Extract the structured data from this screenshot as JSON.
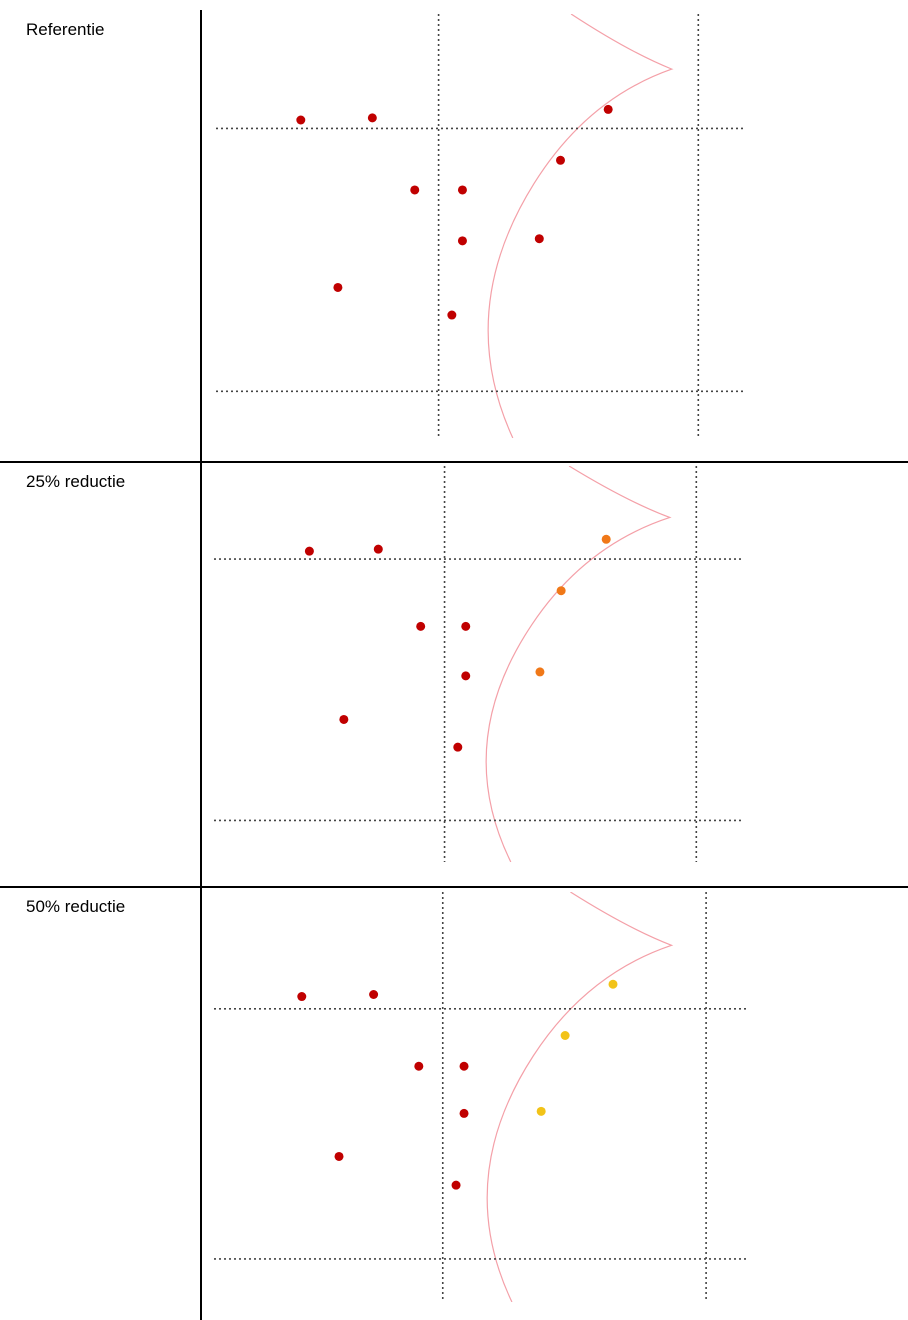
{
  "rows": [
    {
      "label": "Referentie"
    },
    {
      "label": "25% reductie"
    },
    {
      "label": "50% reductie"
    }
  ],
  "colors": {
    "red": "#c00000",
    "orange": "#f07818",
    "yellow": "#f2c318",
    "curve": "#f4a0a8",
    "grid": "#444444",
    "table_border": "#000000"
  },
  "chart_data": [
    {
      "type": "scatter",
      "ylim": [
        0,
        100
      ],
      "xlim": [
        0,
        100
      ],
      "grid_x": [
        42,
        91
      ],
      "grid_y": [
        27,
        89
      ],
      "points": [
        {
          "x": 16,
          "y": 25,
          "color": "red"
        },
        {
          "x": 29.5,
          "y": 24.5,
          "color": "red"
        },
        {
          "x": 74,
          "y": 22.5,
          "color": "red"
        },
        {
          "x": 65,
          "y": 34.5,
          "color": "red"
        },
        {
          "x": 37.5,
          "y": 41.5,
          "color": "red"
        },
        {
          "x": 46.5,
          "y": 41.5,
          "color": "red"
        },
        {
          "x": 46.5,
          "y": 53.5,
          "color": "red"
        },
        {
          "x": 61,
          "y": 53,
          "color": "red"
        },
        {
          "x": 23,
          "y": 64.5,
          "color": "red"
        },
        {
          "x": 44.5,
          "y": 71,
          "color": "red"
        }
      ]
    },
    {
      "type": "scatter",
      "ylim": [
        0,
        100
      ],
      "xlim": [
        0,
        100
      ],
      "grid_x": [
        43.5,
        91
      ],
      "grid_y": [
        23.5,
        89.5
      ],
      "points": [
        {
          "x": 18,
          "y": 21.5,
          "color": "red"
        },
        {
          "x": 31,
          "y": 21,
          "color": "red"
        },
        {
          "x": 74,
          "y": 18.5,
          "color": "orange"
        },
        {
          "x": 65.5,
          "y": 31.5,
          "color": "orange"
        },
        {
          "x": 39,
          "y": 40.5,
          "color": "red"
        },
        {
          "x": 47.5,
          "y": 40.5,
          "color": "red"
        },
        {
          "x": 47.5,
          "y": 53,
          "color": "red"
        },
        {
          "x": 61.5,
          "y": 52,
          "color": "orange"
        },
        {
          "x": 24.5,
          "y": 64,
          "color": "red"
        },
        {
          "x": 46,
          "y": 71,
          "color": "red"
        }
      ]
    },
    {
      "type": "scatter",
      "ylim": [
        0,
        100
      ],
      "xlim": [
        0,
        100
      ],
      "grid_x": [
        43,
        92.5
      ],
      "grid_y": [
        28.5,
        89.5
      ],
      "points": [
        {
          "x": 16.5,
          "y": 25.5,
          "color": "red"
        },
        {
          "x": 30,
          "y": 25,
          "color": "red"
        },
        {
          "x": 75,
          "y": 22.5,
          "color": "yellow"
        },
        {
          "x": 66,
          "y": 35,
          "color": "yellow"
        },
        {
          "x": 38.5,
          "y": 42.5,
          "color": "red"
        },
        {
          "x": 47,
          "y": 42.5,
          "color": "red"
        },
        {
          "x": 47,
          "y": 54,
          "color": "red"
        },
        {
          "x": 61.5,
          "y": 53.5,
          "color": "yellow"
        },
        {
          "x": 23.5,
          "y": 64.5,
          "color": "red"
        },
        {
          "x": 45.5,
          "y": 71.5,
          "color": "red"
        }
      ]
    }
  ]
}
